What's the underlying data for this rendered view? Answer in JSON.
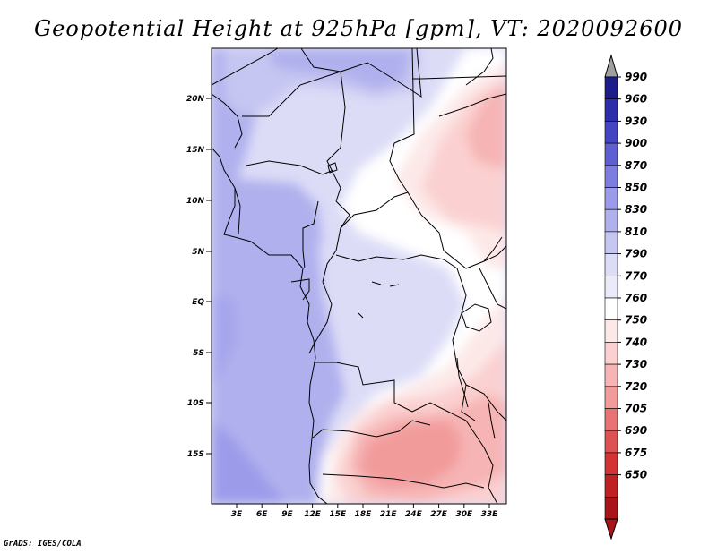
{
  "title": "Geopotential Height at 925hPa [gpm], VT: 2020092600",
  "footer": "GrADS: IGES/COLA",
  "map": {
    "lat_labels": [
      "20N",
      "15N",
      "10N",
      "5N",
      "EQ",
      "5S",
      "10S",
      "15S"
    ],
    "lon_labels": [
      "3E",
      "6E",
      "9E",
      "12E",
      "15E",
      "18E",
      "21E",
      "24E",
      "27E",
      "30E",
      "33E"
    ],
    "colors": {
      "c650": "#a81418",
      "c675": "#c02022",
      "c690": "#d33333",
      "c705": "#dd5252",
      "c720": "#e87373",
      "c730": "#f29b9b",
      "c740": "#f6b4b4",
      "c750": "#fbd0d0",
      "c760": "#fde8e8",
      "c770": "#ffffff",
      "c790": "#dcdcf7",
      "c810": "#c6c6f2",
      "c830": "#b0b0ee",
      "c850": "#9b9bea",
      "c870": "#7d7de0",
      "c900": "#5f5fd4",
      "c930": "#4545c4",
      "c960": "#2e2eaa",
      "c990": "#1c1c8a"
    }
  },
  "colorbar": {
    "labels": [
      "990",
      "960",
      "930",
      "900",
      "870",
      "850",
      "830",
      "810",
      "790",
      "770",
      "760",
      "750",
      "740",
      "730",
      "720",
      "705",
      "690",
      "675",
      "650"
    ],
    "colors": [
      "#1c1c8a",
      "#2e2eaa",
      "#4545c4",
      "#5f5fd4",
      "#7d7de0",
      "#9b9bea",
      "#b0b0ee",
      "#c6c6f2",
      "#dcdcf7",
      "#eaeafb",
      "#ffffff",
      "#fde8e8",
      "#fbd0d0",
      "#f6b4b4",
      "#f29b9b",
      "#e87373",
      "#dd5252",
      "#d33333",
      "#c02022",
      "#a81418"
    ],
    "top_color": "#a0a0a0",
    "bottom_color": "#a81418"
  }
}
